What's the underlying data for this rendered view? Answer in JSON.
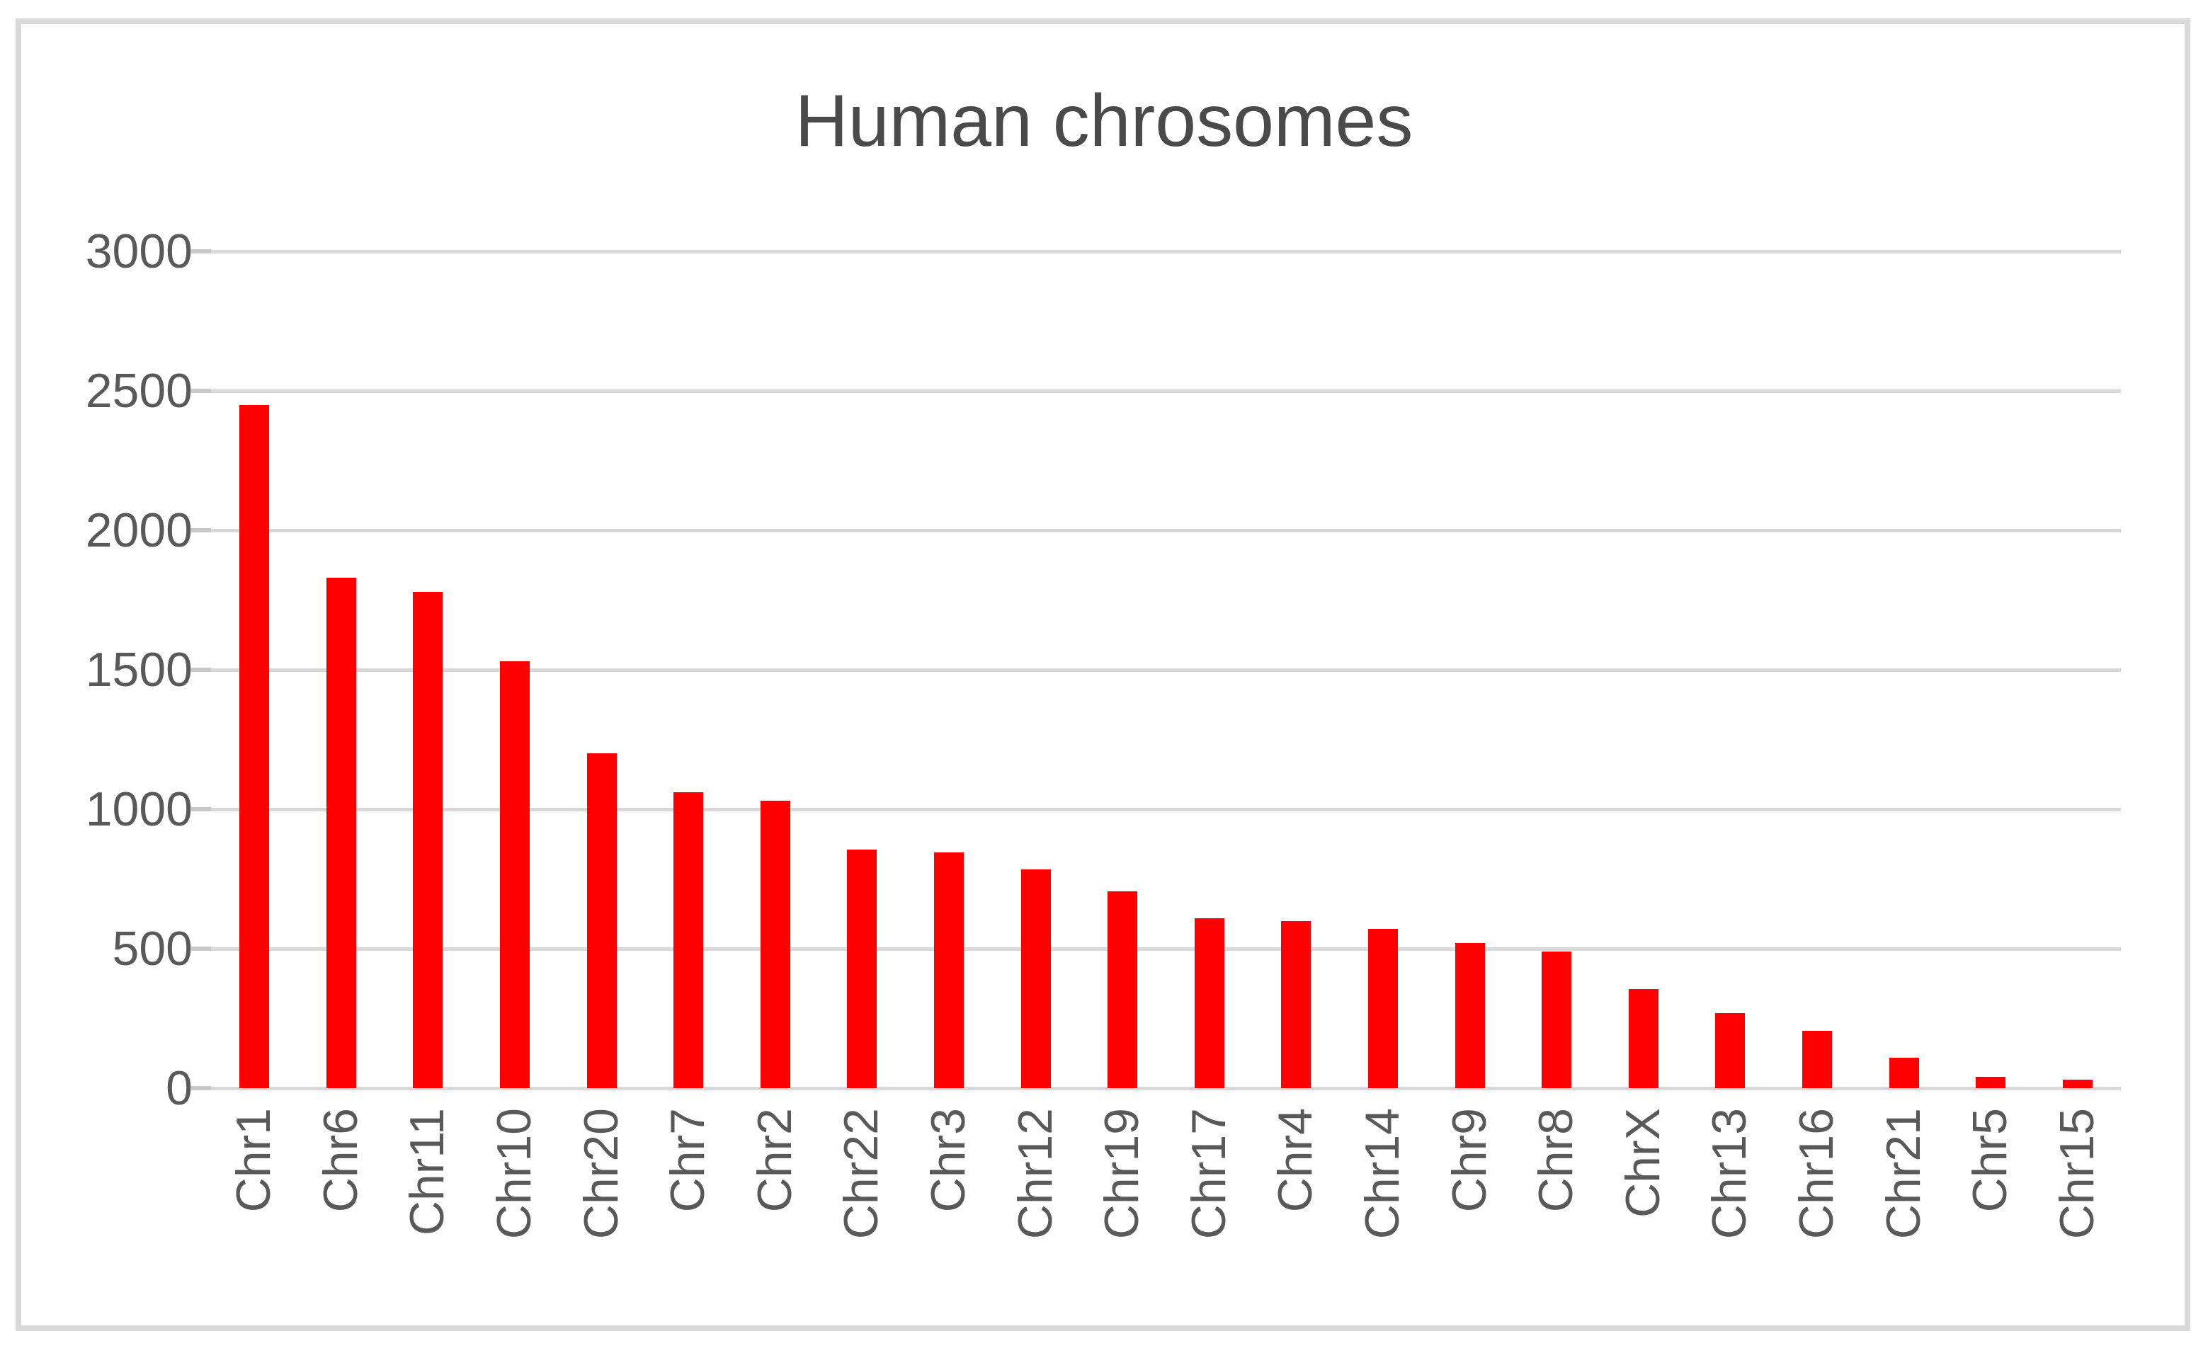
{
  "chart_data": {
    "type": "bar",
    "title": "Human chrosomes",
    "categories": [
      "Chr1",
      "Chr6",
      "Chr11",
      "Chr10",
      "Chr20",
      "Chr7",
      "Chr2",
      "Chr22",
      "Chr3",
      "Chr12",
      "Chr19",
      "Chr17",
      "Chr4",
      "Chr14",
      "Chr9",
      "Chr8",
      "ChrX",
      "Chr13",
      "Chr16",
      "Chr21",
      "Chr5",
      "Chr15"
    ],
    "values": [
      2450,
      1830,
      1780,
      1530,
      1200,
      1060,
      1030,
      855,
      845,
      785,
      705,
      610,
      600,
      570,
      520,
      490,
      355,
      270,
      205,
      110,
      40,
      30
    ],
    "xlabel": "",
    "ylabel": "",
    "ylim": [
      0,
      3000
    ],
    "yticks": [
      0,
      500,
      1000,
      1500,
      2000,
      2500,
      3000
    ],
    "grid": true,
    "legend": false,
    "colors": {
      "bar": "#ff0000",
      "gridline": "#d9d9d9",
      "tick_text": "#595959",
      "title_text": "#4a4a4a",
      "frame_border": "#d9d9d9"
    }
  }
}
